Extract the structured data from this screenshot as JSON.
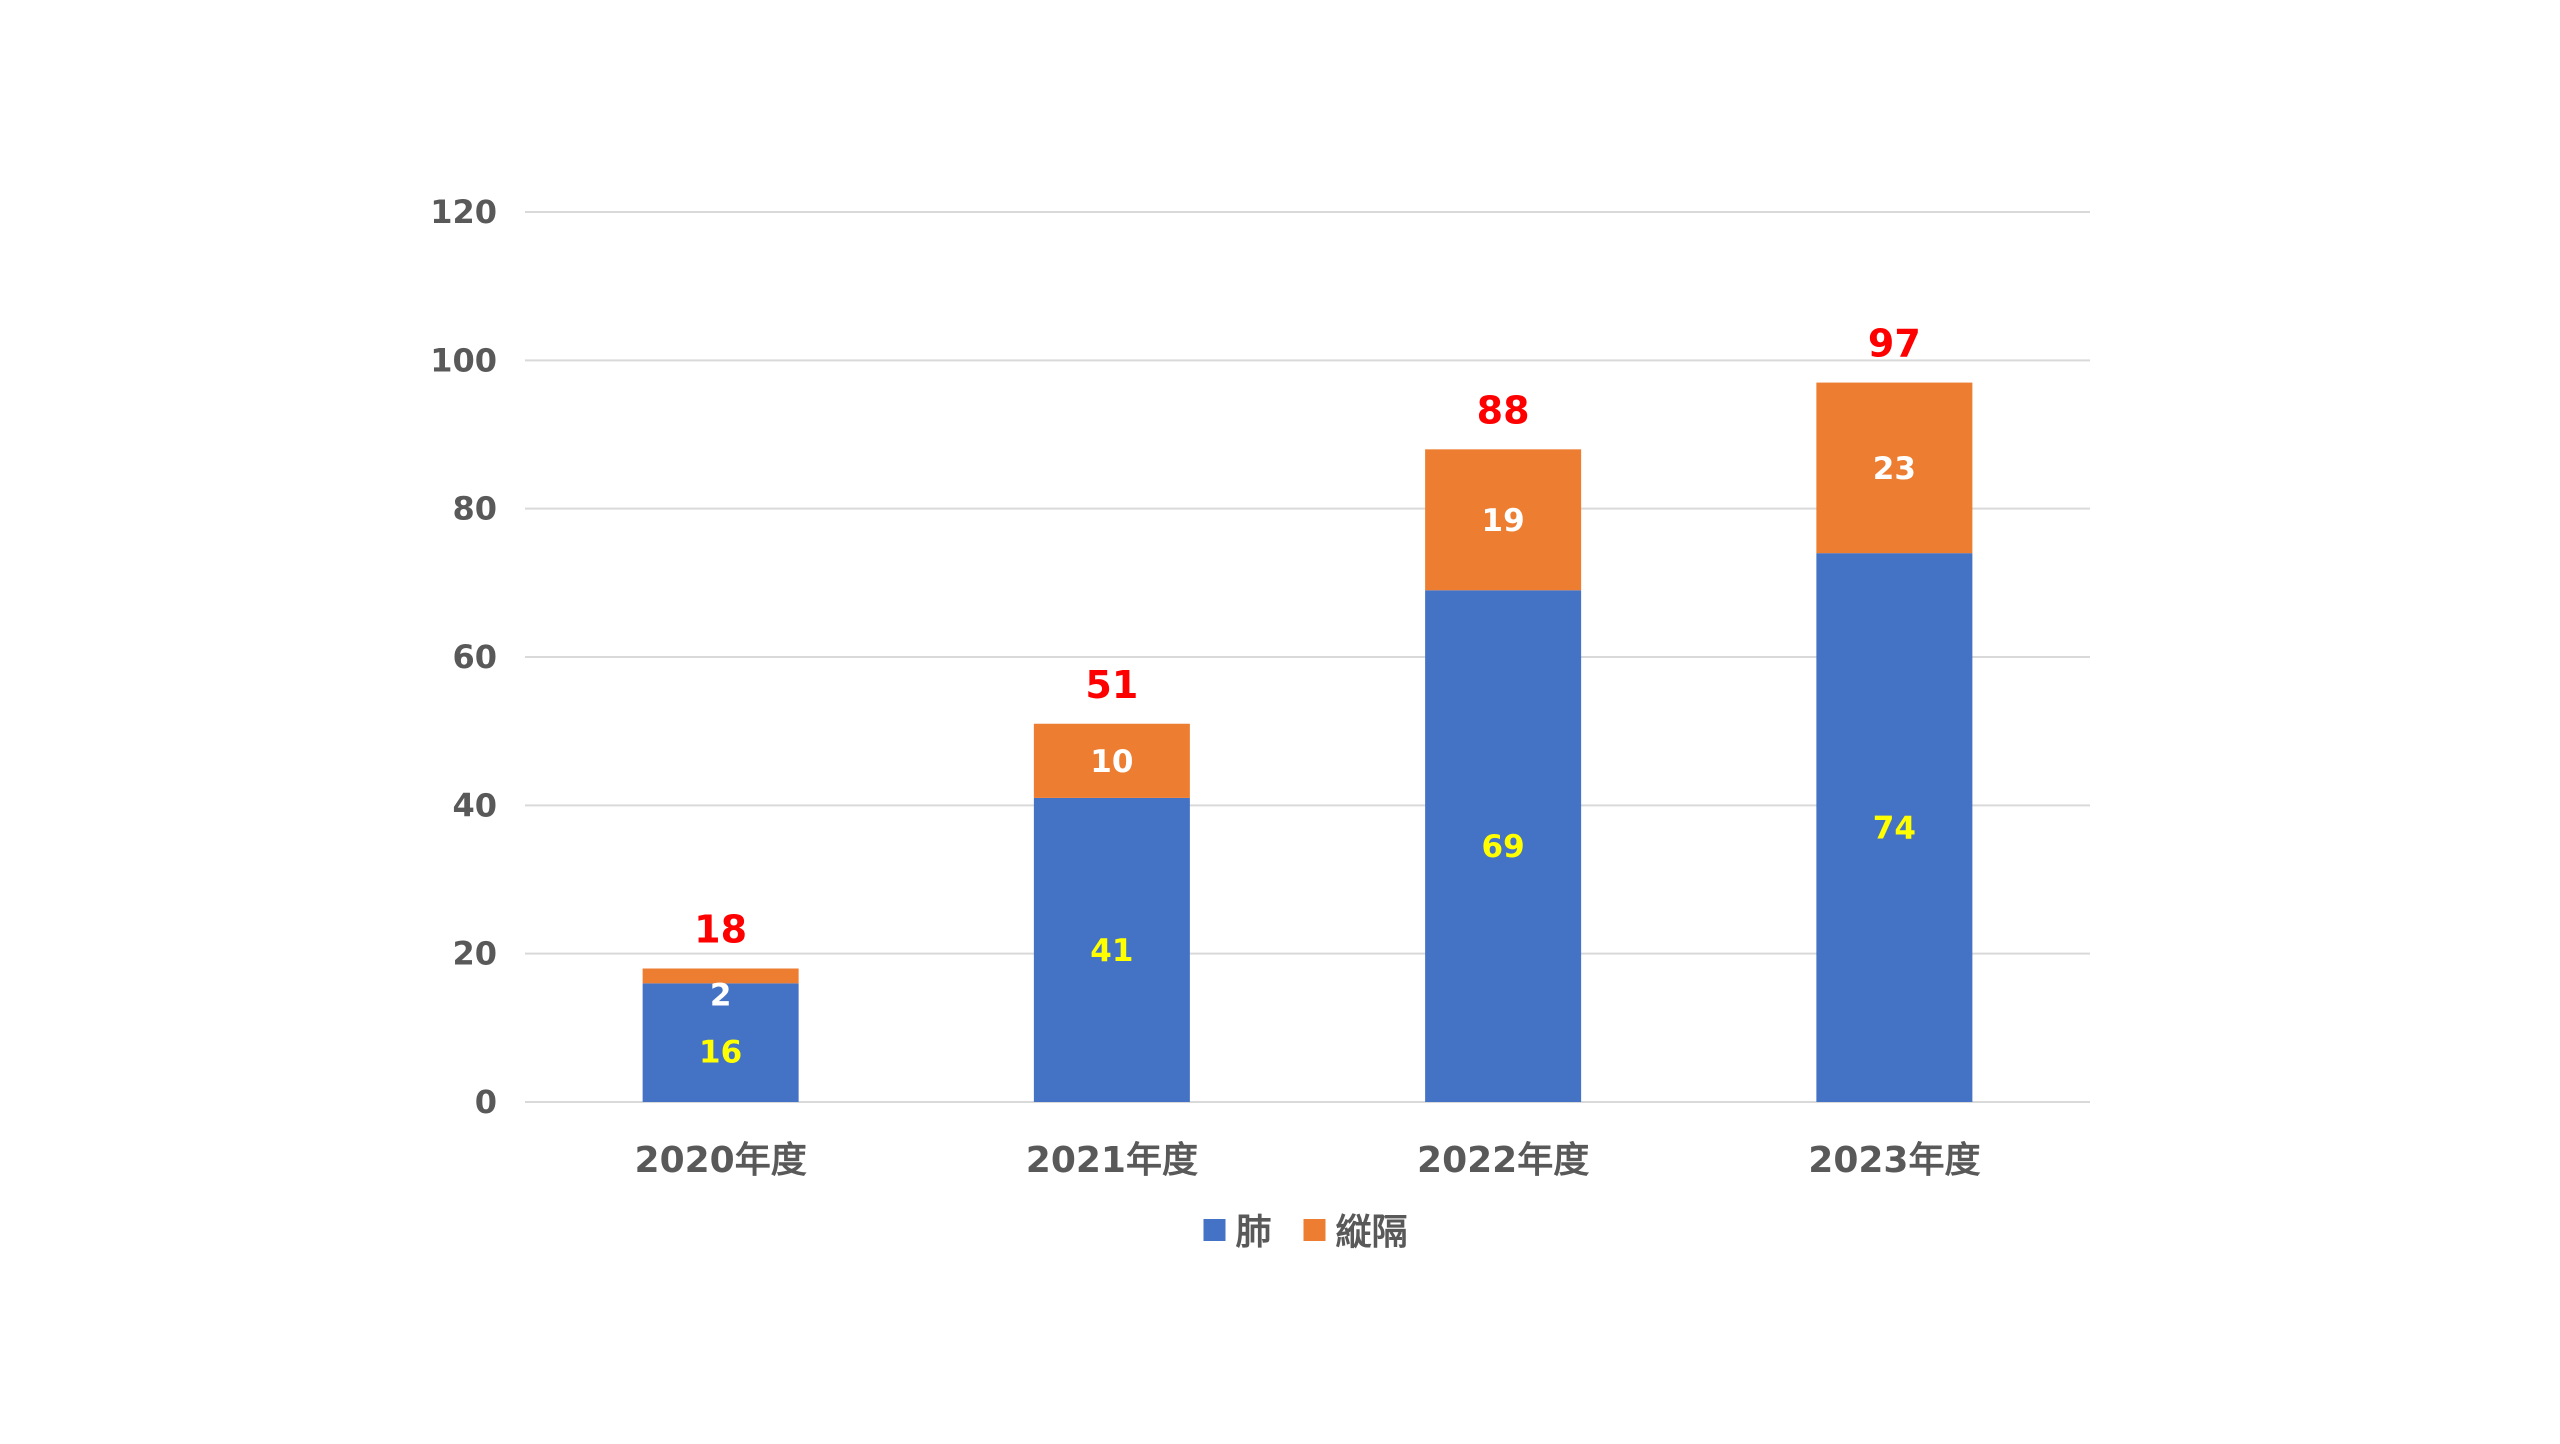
{
  "chart_data": {
    "type": "bar",
    "stacked": true,
    "categories": [
      "2020年度",
      "2021年度",
      "2022年度",
      "2023年度"
    ],
    "series": [
      {
        "name": "肺",
        "values": [
          16,
          41,
          69,
          74
        ],
        "color": "#4472C4",
        "label_color": "#FFFF00"
      },
      {
        "name": "縦隔",
        "values": [
          2,
          10,
          19,
          23
        ],
        "color": "#ED7D31",
        "label_color": "#FFFFFF"
      }
    ],
    "totals": [
      18,
      51,
      88,
      97
    ],
    "total_label_color": "#FF0000",
    "title": "",
    "xlabel": "",
    "ylabel": "",
    "ylim": [
      0,
      120
    ],
    "yticks": [
      0,
      20,
      40,
      60,
      80,
      100,
      120
    ],
    "grid": true,
    "gridline_color": "#D9D9D9",
    "legend_position": "bottom"
  }
}
